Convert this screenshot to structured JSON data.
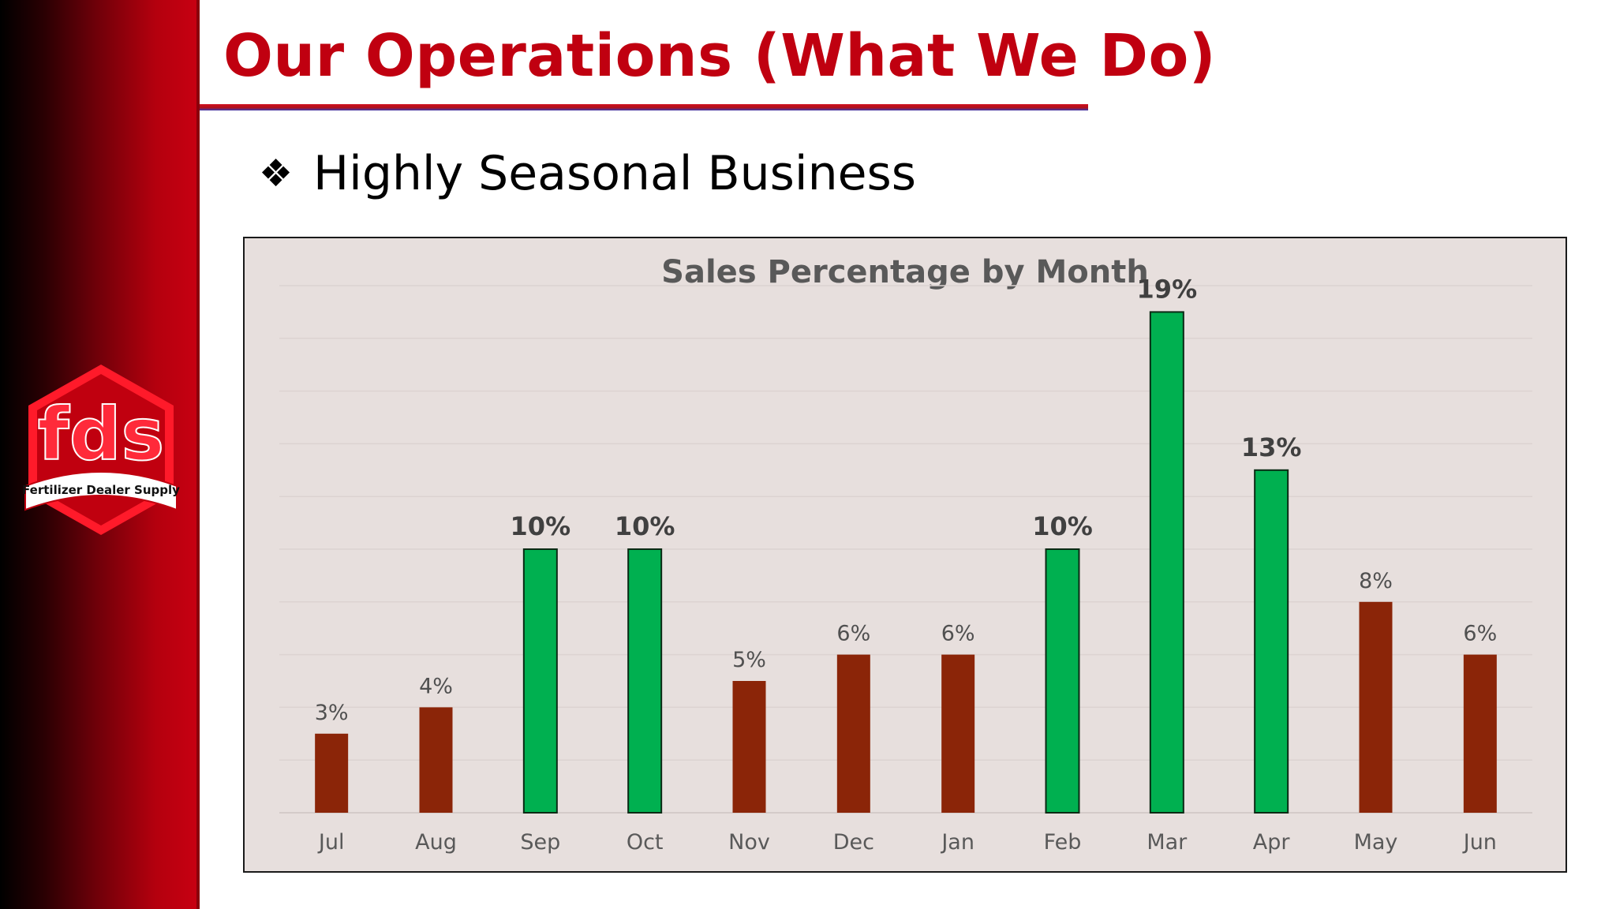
{
  "slide": {
    "title": "Our Operations (What We Do)",
    "bullet_icon": "diamond-cluster-icon",
    "bullet_text": "Highly Seasonal Business",
    "logo": {
      "name": "fds-logo",
      "text_main": "fds",
      "text_sub": "Fertilizer Dealer Supply"
    }
  },
  "colors": {
    "title_red": "#c00010",
    "highlight_bar": "#00b050",
    "normal_bar": "#8b2508",
    "chart_bg": "#e7dfdd"
  },
  "chart_data": {
    "type": "bar",
    "title": "Sales Percentage by Month",
    "xlabel": "",
    "ylabel": "",
    "categories": [
      "Jul",
      "Aug",
      "Sep",
      "Oct",
      "Nov",
      "Dec",
      "Jan",
      "Feb",
      "Mar",
      "Apr",
      "May",
      "Jun"
    ],
    "values": [
      3.0,
      4.0,
      10.0,
      10.0,
      5.0,
      6.0,
      6.0,
      10.0,
      19.0,
      13.0,
      8.0,
      6.0
    ],
    "labels": [
      "3%",
      "4%",
      "10%",
      "10%",
      "5%",
      "6%",
      "6%",
      "10%",
      "19%",
      "13%",
      "8%",
      "6%"
    ],
    "highlighted": [
      false,
      false,
      true,
      true,
      false,
      false,
      false,
      true,
      true,
      true,
      false,
      false
    ],
    "ylim": [
      0,
      20
    ],
    "grid": true,
    "legend": "none"
  }
}
